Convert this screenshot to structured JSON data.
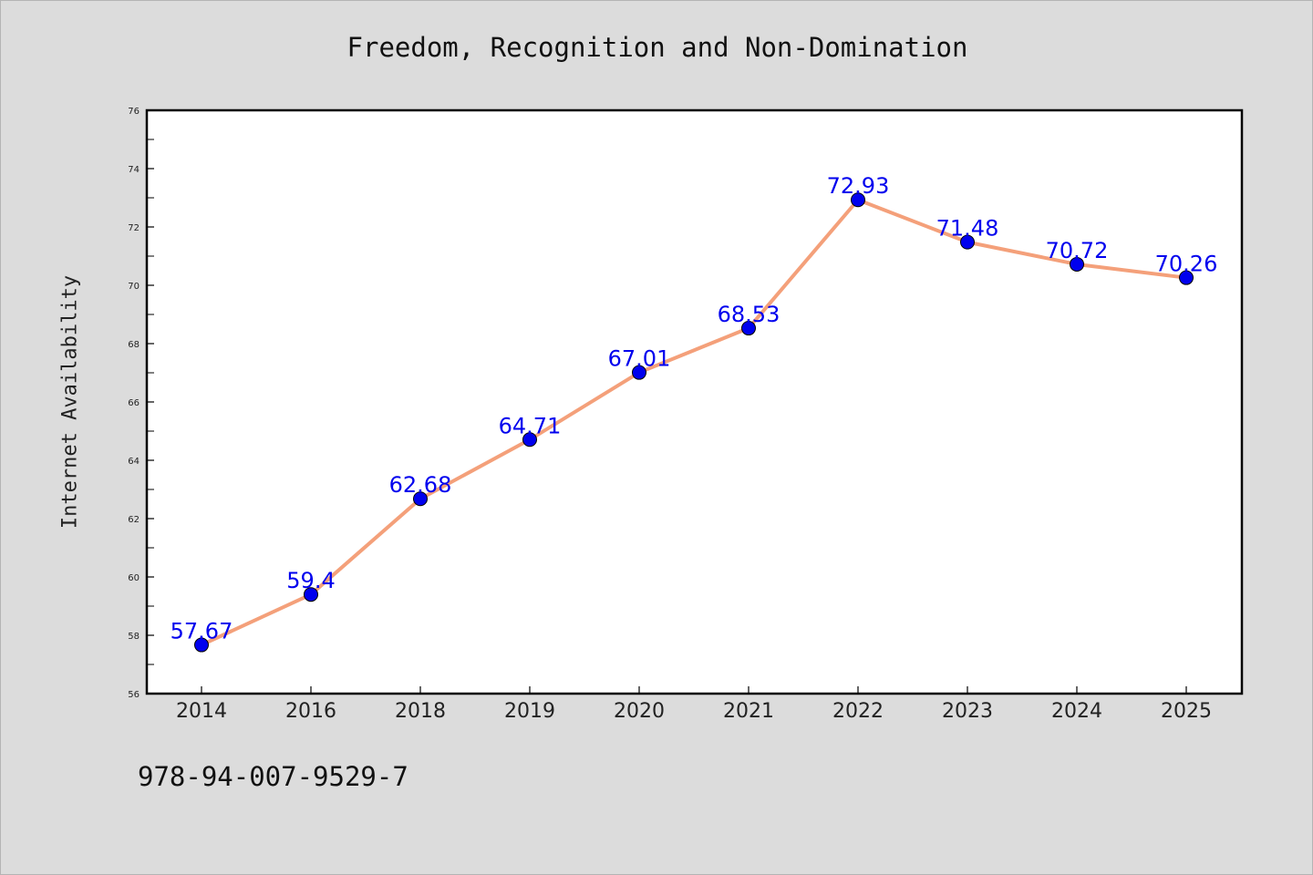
{
  "chart_data": {
    "type": "line",
    "title": "Freedom, Recognition and Non-Domination",
    "xlabel": "",
    "ylabel": "Internet Availability",
    "categories": [
      "2014",
      "2016",
      "2018",
      "2019",
      "2020",
      "2021",
      "2022",
      "2023",
      "2024",
      "2025"
    ],
    "values": [
      57.67,
      59.4,
      62.68,
      64.71,
      67.01,
      68.53,
      72.93,
      71.48,
      70.72,
      70.26
    ],
    "data_labels": [
      "57.67",
      "59.4",
      "62.68",
      "64.71",
      "67.01",
      "68.53",
      "72.93",
      "71.48",
      "70.72",
      "70.26"
    ],
    "ylim": [
      56,
      76
    ],
    "yticks": [
      56,
      58,
      60,
      62,
      64,
      66,
      68,
      70,
      72,
      74,
      76
    ],
    "grid": false,
    "legend": "none",
    "line_color": "#f4a07a",
    "marker_color": "#0000ee",
    "label_color": "#0000ee"
  },
  "footnote": "978-94-007-9529-7"
}
